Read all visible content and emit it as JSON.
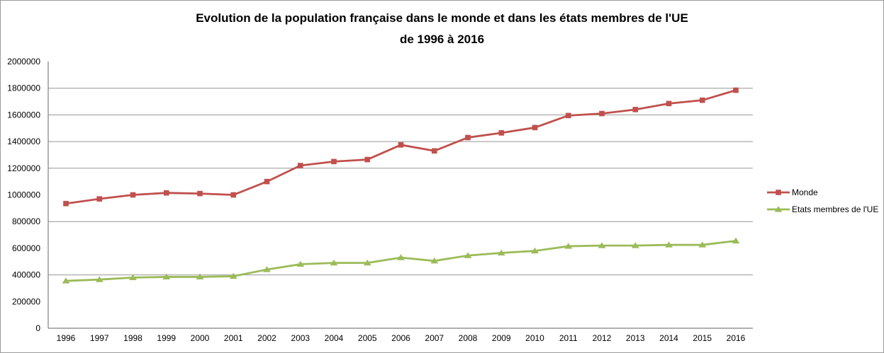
{
  "window": {
    "background": "#ffffff",
    "border_color": "#9b9b9b"
  },
  "chart_data": {
    "type": "line",
    "title": "Evolution de la population française dans le monde et dans les états membres de l'UE de 1996 à 2016",
    "title_lines": [
      "Evolution de la population française dans le monde et dans les états membres de l'UE",
      "de 1996 à 2016"
    ],
    "xlabel": "",
    "ylabel": "",
    "categories": [
      1996,
      1997,
      1998,
      1999,
      2000,
      2001,
      2002,
      2003,
      2004,
      2005,
      2006,
      2007,
      2008,
      2009,
      2010,
      2011,
      2012,
      2013,
      2014,
      2015,
      2016
    ],
    "series": [
      {
        "name": "Monde",
        "color": "#C0504D",
        "marker": "square",
        "values": [
          935000,
          970000,
          1000000,
          1015000,
          1010000,
          1000000,
          1100000,
          1220000,
          1250000,
          1265000,
          1375000,
          1330000,
          1430000,
          1465000,
          1505000,
          1595000,
          1610000,
          1640000,
          1685000,
          1710000,
          1785000
        ]
      },
      {
        "name": "Etats membres de l'UE",
        "color": "#9BBB59",
        "marker": "triangle",
        "values": [
          355000,
          365000,
          380000,
          385000,
          385000,
          390000,
          440000,
          480000,
          490000,
          490000,
          530000,
          505000,
          545000,
          565000,
          580000,
          615000,
          620000,
          620000,
          625000,
          625000,
          655000
        ]
      }
    ],
    "ylim": [
      0,
      2000000
    ],
    "y_ticks": [
      0,
      200000,
      400000,
      600000,
      800000,
      1000000,
      1200000,
      1400000,
      1600000,
      1800000,
      2000000
    ],
    "gridline_values": [
      400000,
      800000,
      1200000,
      1400000,
      1600000,
      1800000
    ],
    "grid": true,
    "legend_position": "right",
    "axis_color": "#808080",
    "gridline_color": "#959595",
    "tick_label_color": "#000000",
    "title_color": "#000000"
  }
}
